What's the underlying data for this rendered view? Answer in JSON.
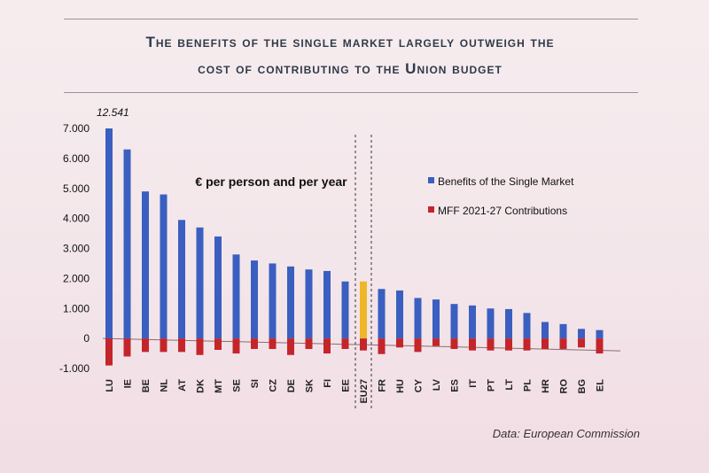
{
  "title_line1": "The benefits of the single market largely outweigh the",
  "title_line2": "cost of contributing to the Union budget",
  "unit_label": "€ per person and per year",
  "source": "Data: European Commission",
  "colors": {
    "benefits": "#3a5fc0",
    "contributions": "#c4252a",
    "eu27": "#f0b62a",
    "eu27_contrib": "#c4252a"
  },
  "chart_data": {
    "type": "bar",
    "categories": [
      "LU",
      "IE",
      "BE",
      "NL",
      "AT",
      "DK",
      "MT",
      "SE",
      "SI",
      "CZ",
      "DE",
      "SK",
      "FI",
      "EE",
      "EU27",
      "FR",
      "HU",
      "CY",
      "LV",
      "ES",
      "IT",
      "PT",
      "LT",
      "PL",
      "HR",
      "RO",
      "BG",
      "EL"
    ],
    "series": [
      {
        "name": "Benefits of the Single Market",
        "values": [
          7000,
          6300,
          4900,
          4800,
          3950,
          3700,
          3400,
          2800,
          2600,
          2500,
          2400,
          2300,
          2250,
          1900,
          1900,
          1650,
          1600,
          1350,
          1300,
          1150,
          1100,
          1000,
          980,
          850,
          550,
          480,
          320,
          280
        ]
      },
      {
        "name": "MFF 2021-27 Contributions",
        "values": [
          -900,
          -600,
          -450,
          -450,
          -450,
          -550,
          -380,
          -500,
          -350,
          -350,
          -550,
          -350,
          -500,
          -350,
          -400,
          -520,
          -300,
          -450,
          -250,
          -350,
          -400,
          -400,
          -400,
          -400,
          -350,
          -350,
          -300,
          -500
        ]
      }
    ],
    "annotations": [
      {
        "category": "LU",
        "text": "12.541"
      }
    ],
    "ylim": [
      -1000,
      7000
    ],
    "yticks": [
      7000,
      6000,
      5000,
      4000,
      3000,
      2000,
      1000,
      0,
      -1000
    ],
    "ytick_labels": [
      "7.000",
      "6.000",
      "5.000",
      "4.000",
      "3.000",
      "2.000",
      "1.000",
      "0",
      "-1.000"
    ],
    "legend_position": "top-right",
    "grid": false
  }
}
